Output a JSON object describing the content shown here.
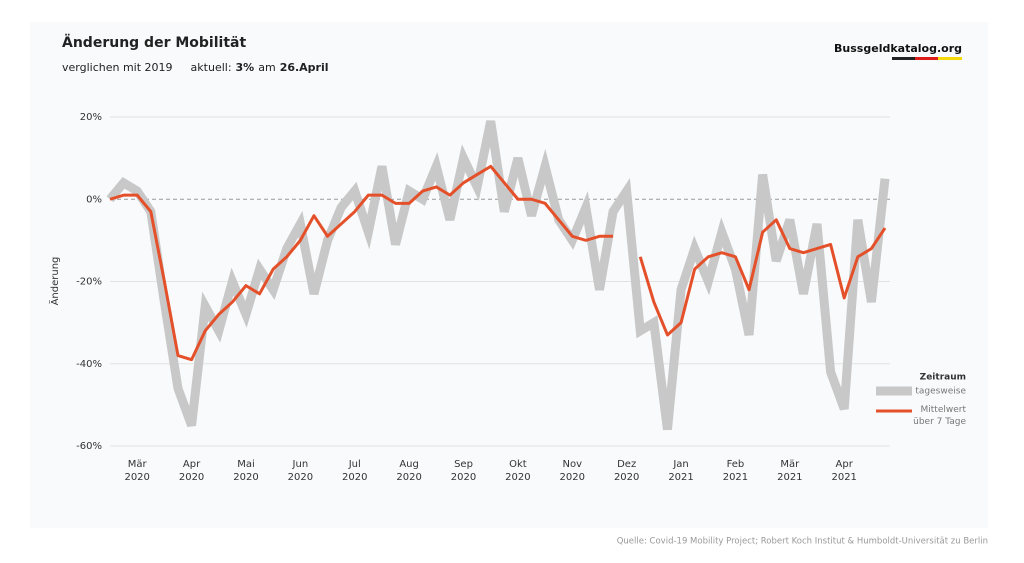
{
  "header": {
    "title": "Änderung der Mobilität",
    "subtitle": "verglichen mit 2019",
    "current_label": "aktuell:",
    "current_value": "3%",
    "current_on": "am",
    "current_date": "26.April",
    "brand": "Bussgeldkatalog.org"
  },
  "source": "Quelle: Covid-19 Mobility Project; Robert Koch Institut & Humboldt-Universität zu Berlin",
  "chart_data": {
    "type": "line",
    "ylabel": "Änderung",
    "legend_title": "Zeitraum",
    "legend": "right",
    "categories": [
      null,
      null,
      "Mär 2020",
      null,
      null,
      null,
      "Apr 2020",
      null,
      null,
      null,
      "Mai 2020",
      null,
      null,
      null,
      "Jun 2020",
      null,
      null,
      null,
      "Jul 2020",
      null,
      null,
      null,
      "Aug 2020",
      null,
      null,
      null,
      "Sep 2020",
      null,
      null,
      null,
      "Okt 2020",
      null,
      null,
      null,
      "Nov 2020",
      null,
      null,
      null,
      "Dez 2020",
      null,
      null,
      null,
      "Jan 2021",
      null,
      null,
      null,
      "Feb 2021",
      null,
      null,
      null,
      "Mär 2021",
      null,
      null,
      null,
      "Apr 2021",
      null,
      null,
      null
    ],
    "series": [
      {
        "name": "tagesweise",
        "color": "#c8c8c8",
        "values": [
          0,
          4,
          2,
          -3,
          -25,
          -46,
          -55,
          -26,
          -32,
          -20,
          -28,
          -17,
          -22,
          -12,
          -6,
          -23,
          -10,
          -2,
          2,
          -8,
          8,
          -11,
          2,
          0,
          8,
          -5,
          10,
          3,
          19,
          -3,
          10,
          -4,
          8,
          -5,
          -10,
          -2,
          -22,
          -3,
          2,
          -32,
          -30,
          -56,
          -22,
          -12,
          -20,
          -8,
          -17,
          -33,
          6,
          -15,
          -5,
          -23,
          -6,
          -42,
          -51,
          -5,
          -25,
          5
        ]
      },
      {
        "name": "Mittelwert über 7 Tage",
        "color": "#e4502a",
        "values": [
          0,
          1,
          1,
          -3,
          -20,
          -38,
          -39,
          -32,
          -28,
          -25,
          -21,
          -23,
          -17,
          -14,
          -10,
          -4,
          -9,
          -6,
          -3,
          1,
          1,
          -1,
          -1,
          2,
          3,
          1,
          4,
          6,
          8,
          4,
          0,
          0,
          -1,
          -5,
          -9,
          -10,
          -9,
          -9,
          null,
          -14,
          -25,
          -33,
          -30,
          -17,
          -14,
          -13,
          -14,
          -22,
          -8,
          -5,
          -12,
          -13,
          -12,
          -11,
          -24,
          -14,
          -12,
          -7
        ]
      }
    ],
    "ylim": [
      -60,
      20
    ],
    "yticks": [
      {
        "value": -60,
        "label": "-60%"
      },
      {
        "value": -40,
        "label": "-40%"
      },
      {
        "value": -20,
        "label": "-20%"
      },
      {
        "value": 0,
        "label": "0%"
      },
      {
        "value": 20,
        "label": "20%"
      }
    ],
    "grid": true
  }
}
